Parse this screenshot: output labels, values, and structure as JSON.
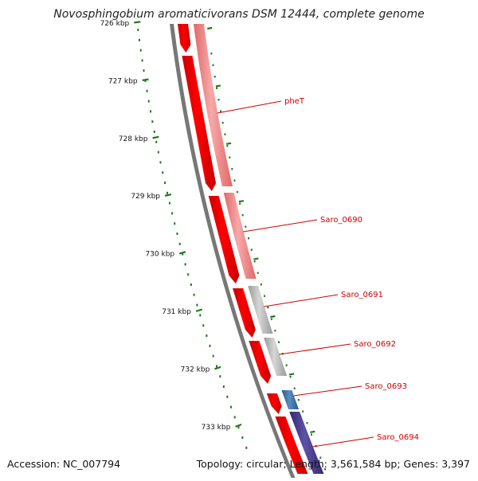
{
  "title": "Novosphingobium aromaticivorans DSM 12444, complete genome",
  "footer": {
    "accession": "Accession: NC_007794",
    "summary": "Topology: circular; Length: 3,561,584 bp; Genes: 3,397"
  },
  "ticks": [
    "726 kbp",
    "727 kbp",
    "728 kbp",
    "729 kbp",
    "730 kbp",
    "731 kbp",
    "732 kbp",
    "733 kbp"
  ],
  "genes": [
    {
      "label": "pheT"
    },
    {
      "label": "Saro_0690"
    },
    {
      "label": "Saro_0691"
    },
    {
      "label": "Saro_0692"
    },
    {
      "label": "Saro_0693"
    },
    {
      "label": "Saro_0694"
    }
  ],
  "colors": {
    "cds_red": "#ff0000",
    "gene_pink": "#f08080",
    "gene_grey": "#b8b8b8",
    "gene_blue": "#3f74a8",
    "gene_purple": "#4a3d8c",
    "label_red": "#cc0000",
    "tick_green": "#1e7a1e",
    "backbone_grey": "#777777"
  }
}
